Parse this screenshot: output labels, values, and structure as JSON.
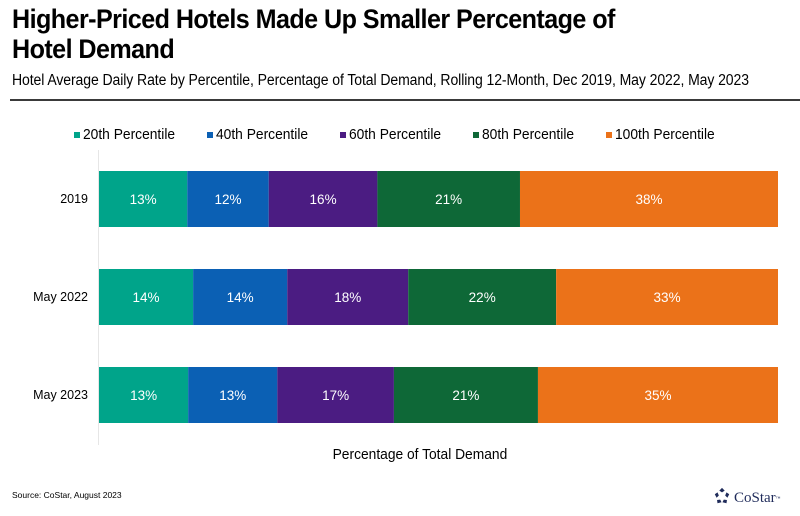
{
  "header": {
    "title_line1": "Higher-Priced Hotels Made Up Smaller Percentage of",
    "title_line2": "Hotel Demand",
    "subtitle": "Hotel Average Daily Rate by Percentile, Percentage of Total Demand, Rolling 12-Month, Dec 2019, May 2022, May 2023"
  },
  "footer": {
    "source": "Source: CoStar, August 2023",
    "logo_text": "CoStar",
    "logo_tm": "™",
    "logo_icon": "costar-star-ring-icon"
  },
  "chart_data": {
    "type": "bar",
    "orientation": "horizontal",
    "stacked": true,
    "title": "Higher-Priced Hotels Made Up Smaller Percentage of Hotel Demand",
    "subtitle": "Hotel Average Daily Rate by Percentile, Percentage of Total Demand, Rolling 12-Month, Dec 2019, May 2022, May 2023",
    "xlabel": "Percentage of Total Demand",
    "ylabel": "",
    "categories": [
      "2019",
      "May 2022",
      "May 2023"
    ],
    "legend_position": "top",
    "grid": false,
    "xlim": [
      0,
      100
    ],
    "series": [
      {
        "name": "20th Percentile",
        "color": "#00A48A",
        "values": [
          13,
          14,
          13
        ],
        "labels": [
          "13%",
          "14%",
          "13%"
        ]
      },
      {
        "name": "40th Percentile",
        "color": "#0B60B4",
        "values": [
          12,
          14,
          13
        ],
        "labels": [
          "12%",
          "14%",
          "13%"
        ]
      },
      {
        "name": "60th Percentile",
        "color": "#4B1C82",
        "values": [
          16,
          18,
          17
        ],
        "labels": [
          "16%",
          "18%",
          "17%"
        ]
      },
      {
        "name": "80th Percentile",
        "color": "#0E6837",
        "values": [
          21,
          22,
          21
        ],
        "labels": [
          "21%",
          "22%",
          "21%"
        ]
      },
      {
        "name": "100th Percentile",
        "color": "#EB7219",
        "values": [
          38,
          33,
          35
        ],
        "labels": [
          "38%",
          "33%",
          "35%"
        ]
      }
    ]
  }
}
